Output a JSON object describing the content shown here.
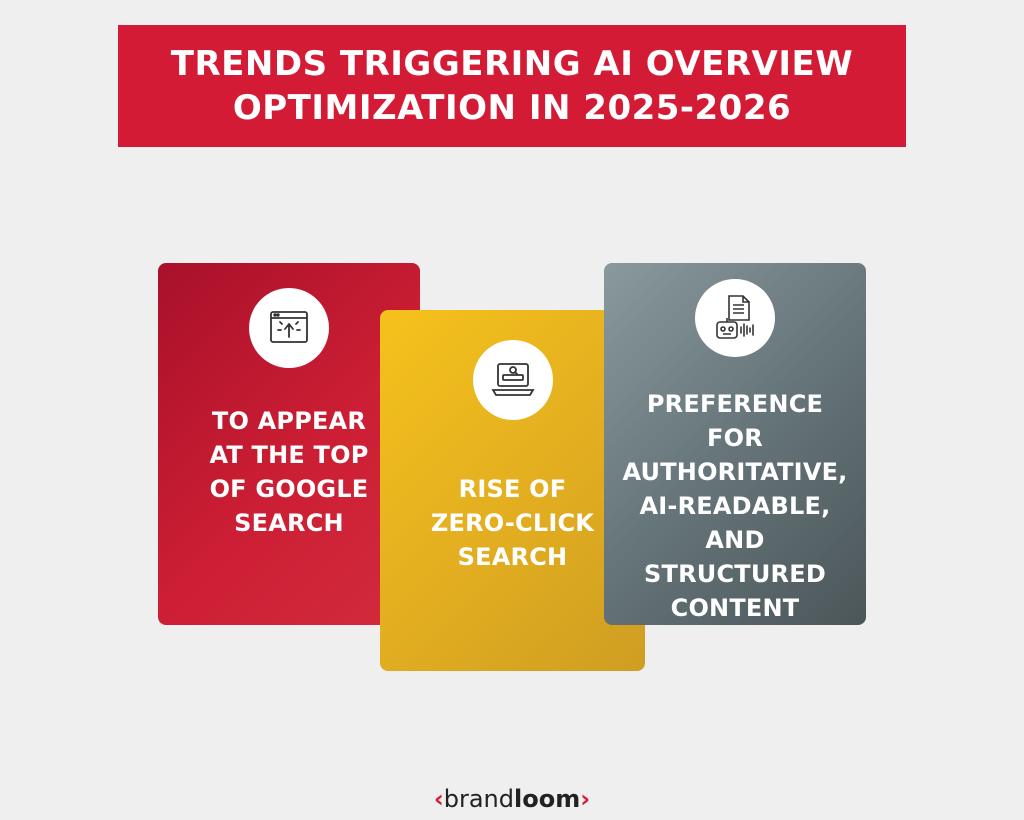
{
  "title": {
    "line1": "TRENDS TRIGGERING AI OVERVIEW",
    "line2": "OPTIMIZATION IN 2025-2026"
  },
  "cards": [
    {
      "icon": "browser-cursor-icon",
      "lines": [
        "TO APPEAR",
        "AT THE TOP",
        "OF GOOGLE",
        "SEARCH"
      ],
      "color": "#c81d33"
    },
    {
      "icon": "laptop-search-icon",
      "lines": [
        "RISE OF",
        "ZERO-CLICK",
        "SEARCH"
      ],
      "color": "#e8b020"
    },
    {
      "icon": "document-robot-icon",
      "lines": [
        "PREFERENCE",
        "FOR",
        "AUTHORITATIVE,",
        "AI-READABLE,",
        "AND",
        "STRUCTURED",
        "CONTENT"
      ],
      "color": "#6b797d"
    }
  ],
  "logo": {
    "left_bracket": "‹",
    "light": "brand",
    "bold": "loom",
    "right_bracket": "›"
  },
  "colors": {
    "brand_red": "#d31b36",
    "background": "#efeff0"
  }
}
